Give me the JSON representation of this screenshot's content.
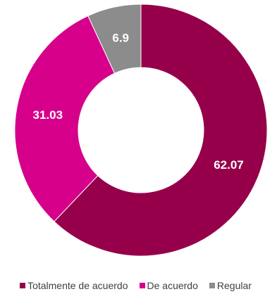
{
  "chart_data": {
    "type": "pie",
    "donut": true,
    "title": "",
    "legend_position": "bottom",
    "series": [
      {
        "name": "Totalmente de acuerdo",
        "value": 62.07,
        "label": "62.07",
        "color": "#96004B"
      },
      {
        "name": "De acuerdo",
        "value": 31.03,
        "label": "31.03",
        "color": "#D6008A"
      },
      {
        "name": "Regular",
        "value": 6.9,
        "label": "6.9",
        "color": "#8C8C8C"
      }
    ]
  }
}
